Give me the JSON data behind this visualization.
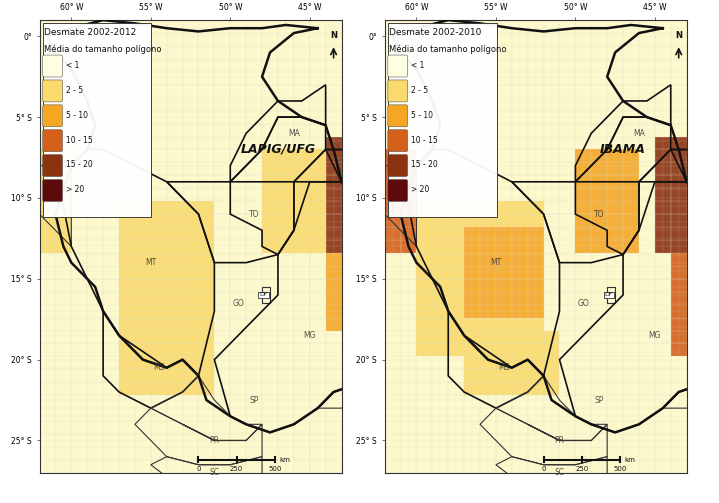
{
  "left_title_line1": "Desmate 2002-2012",
  "left_title_line2": "Média do tamanho polígono",
  "left_label": "LAPIG/UFG",
  "right_title_line1": "Desmate 2002-2010",
  "right_title_line2": "Média do tamanho polígono",
  "right_label": "IBAMA",
  "legend_labels": [
    "< 1",
    "2 - 5",
    "5 - 10",
    "10 - 15",
    "15 - 20",
    "> 20"
  ],
  "legend_colors": [
    "#FEFEE0",
    "#FADA6A",
    "#F5A623",
    "#D4601A",
    "#8B3210",
    "#5C0A0A"
  ],
  "bg_color": "#FFFFFF",
  "lon_ticks": [
    -60,
    -55,
    -50,
    -45
  ],
  "lat_ticks": [
    0,
    -5,
    -10,
    -15,
    -20,
    -25
  ],
  "lon_labels": [
    "60° W",
    "55° W",
    "50° W",
    "45° W"
  ],
  "lat_labels": [
    "0°",
    "5° S",
    "10° S",
    "15° S",
    "20° S",
    "25° S"
  ],
  "xlim": [
    -62,
    -43
  ],
  "ylim": [
    -27,
    1
  ],
  "map_face_color": "#FDFAF0",
  "grid_color": "#CCCCCC",
  "muni_default_color": "#FEF9C8",
  "cerrado_border_color": "#111111",
  "state_border_color": "#555555",
  "muni_border_color": "#BBBBAA"
}
